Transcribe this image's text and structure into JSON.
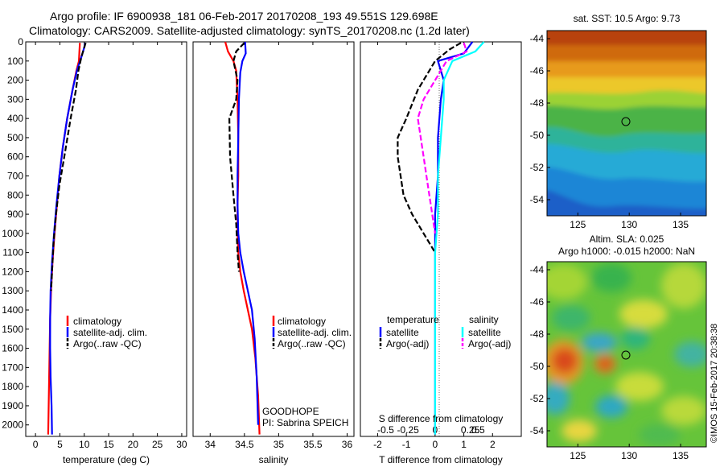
{
  "header": {
    "line1": "Argo profile: IF 6900938_181 06-Feb-2017 20170208_193 49.551S 129.698E",
    "line2": "Climatology: CARS2009. Satellite-adjusted climatology: synTS_20170208.nc (1.2d later)"
  },
  "credit": "©IMOS 15-Feb-2017 20:38:38",
  "colors": {
    "climatology": "#ff0000",
    "satellite": "#0000ff",
    "argo": "#000000",
    "satellite_s_diff": "#00ffff",
    "argo_s_diff": "#ff00ff"
  },
  "chart_data": [
    {
      "type": "line",
      "name": "temperature",
      "xlabel": "temperature (deg C)",
      "ylabel": "",
      "xlim": [
        -2,
        31
      ],
      "ylim": [
        2060,
        0
      ],
      "y_reversed": true,
      "xticks": [
        0,
        5,
        10,
        15,
        20,
        25,
        30
      ],
      "yticks": [
        0,
        100,
        200,
        300,
        400,
        500,
        600,
        700,
        800,
        900,
        1000,
        1100,
        1200,
        1300,
        1400,
        1500,
        1600,
        1700,
        1800,
        1900,
        2000
      ],
      "legend": [
        "climatology",
        "satellite-adj. clim.",
        "Argo(..raw -QC)"
      ],
      "series": [
        {
          "name": "climatology",
          "color": "#ff0000",
          "style": "solid",
          "x": [
            9.1,
            9.0,
            8.9,
            8.4,
            7.6,
            6.5,
            5.6,
            4.9,
            4.4,
            3.9,
            3.5,
            3.2,
            3.0,
            2.9,
            2.8,
            2.7,
            2.6
          ],
          "y": [
            5,
            50,
            100,
            150,
            250,
            400,
            550,
            700,
            850,
            1000,
            1150,
            1300,
            1450,
            1600,
            1750,
            1900,
            2050
          ]
        },
        {
          "name": "satellite-adj. clim.",
          "color": "#0000ff",
          "style": "solid",
          "x": [
            10.2,
            10.0,
            9.4,
            8.5,
            7.6,
            6.5,
            5.6,
            4.9,
            4.3,
            3.8,
            3.4,
            3.1,
            3.0,
            3.0,
            3.1,
            3.3,
            3.4
          ],
          "y": [
            5,
            30,
            80,
            150,
            250,
            400,
            550,
            700,
            850,
            1000,
            1150,
            1300,
            1450,
            1600,
            1750,
            1900,
            2050
          ]
        },
        {
          "name": "Argo(..raw -QC)",
          "color": "#000000",
          "style": "dashed",
          "x": [
            10.3,
            10.0,
            9.4,
            8.8,
            8.3,
            7.2,
            5.9,
            4.9,
            4.2,
            3.7,
            3.4,
            3.2
          ],
          "y": [
            5,
            30,
            80,
            150,
            250,
            400,
            600,
            750,
            900,
            1050,
            1200,
            1300
          ]
        }
      ]
    },
    {
      "type": "line",
      "name": "salinity",
      "xlabel": "salinity",
      "ylabel": "",
      "xlim": [
        33.75,
        36.1
      ],
      "ylim": [
        2060,
        0
      ],
      "y_reversed": true,
      "xticks": [
        34,
        34.5,
        35,
        35.5,
        36
      ],
      "legend": [
        "climatology",
        "satellite-adj. clim.",
        "Argo(..raw -QC)"
      ],
      "annotation": [
        "GOODHOPE",
        "PI: Sabrina SPEICH"
      ],
      "series": [
        {
          "name": "climatology",
          "color": "#ff0000",
          "style": "solid",
          "x": [
            34.22,
            34.26,
            34.34,
            34.38,
            34.4,
            34.41,
            34.41,
            34.4,
            34.4,
            34.41,
            34.44,
            34.49,
            34.55,
            34.61,
            34.66,
            34.7,
            34.72
          ],
          "y": [
            0,
            50,
            100,
            150,
            300,
            500,
            700,
            850,
            1000,
            1100,
            1200,
            1300,
            1400,
            1500,
            1650,
            1850,
            2050
          ]
        },
        {
          "name": "satellite-adj. clim.",
          "color": "#0000ff",
          "style": "solid",
          "x": [
            34.51,
            34.52,
            34.47,
            34.44,
            34.42,
            34.41,
            34.4,
            34.4,
            34.41,
            34.44,
            34.49,
            34.55,
            34.61,
            34.65,
            34.68,
            34.7
          ],
          "y": [
            0,
            60,
            100,
            160,
            300,
            500,
            700,
            850,
            1000,
            1100,
            1200,
            1300,
            1400,
            1550,
            1750,
            2000
          ]
        },
        {
          "name": "Argo(..raw -QC)",
          "color": "#000000",
          "style": "dashed",
          "x": [
            34.5,
            34.38,
            34.34,
            34.4,
            34.38,
            34.28,
            34.29,
            34.34,
            34.38,
            34.4,
            34.42
          ],
          "y": [
            5,
            50,
            100,
            200,
            300,
            400,
            600,
            800,
            950,
            1100,
            1200
          ]
        }
      ]
    },
    {
      "type": "line",
      "name": "differences",
      "xlabel": "T difference from climatology",
      "xlabel_top": "S difference from climatology",
      "xlim": [
        -2.6,
        3.0
      ],
      "ylim": [
        2060,
        0
      ],
      "y_reversed": true,
      "xticks": [
        -2,
        -1,
        0,
        1,
        2
      ],
      "top_ticks_labels": [
        "-0.5",
        "-0.25",
        "0",
        "0.25",
        "0.5"
      ],
      "legend_groups": [
        "temperature",
        "salinity"
      ],
      "legend": [
        "satellite",
        "Argo(-adj)",
        "satellite",
        "Argo(-adj)"
      ],
      "series": [
        {
          "name": "temperature satellite",
          "color": "#0000ff",
          "style": "solid",
          "x": [
            1.3,
            1.0,
            0.1,
            0.2,
            0.3,
            0.2,
            0.1,
            0.1,
            0.0,
            0.0,
            0.0,
            0.0,
            0.0,
            0.0
          ],
          "y": [
            0,
            60,
            100,
            150,
            200,
            300,
            500,
            700,
            900,
            1100,
            1300,
            1500,
            1700,
            2050
          ]
        },
        {
          "name": "temperature Argo(-adj)",
          "color": "#000000",
          "style": "dashed",
          "x": [
            0.9,
            0.5,
            0.0,
            -0.6,
            -1.0,
            -1.3,
            -1.3,
            -1.2,
            -1.1,
            -0.8,
            -0.4,
            0.0
          ],
          "y": [
            5,
            40,
            100,
            250,
            400,
            500,
            600,
            700,
            800,
            900,
            1000,
            1100
          ]
        },
        {
          "name": "salinity satellite",
          "color": "#00ffff",
          "style": "solid",
          "x": [
            1.7,
            1.4,
            0.6,
            0.3,
            0.3,
            0.2,
            0.1,
            0.1,
            0.0,
            0.0,
            0.0,
            0.0
          ],
          "y": [
            0,
            50,
            100,
            200,
            300,
            500,
            700,
            900,
            1100,
            1300,
            1600,
            2050
          ]
        },
        {
          "name": "salinity Argo(-adj)",
          "color": "#ff00ff",
          "style": "dashed",
          "x": [
            1.0,
            1.1,
            0.4,
            0.0,
            -0.4,
            -0.6,
            -0.5,
            -0.4,
            -0.3,
            -0.2,
            -0.1,
            0.0
          ],
          "y": [
            5,
            50,
            100,
            200,
            300,
            400,
            500,
            600,
            700,
            800,
            900,
            1000
          ]
        }
      ]
    },
    {
      "type": "heatmap",
      "name": "sst-map",
      "title": "sat. SST: 10.5 Argo: 9.73",
      "xlim": [
        122,
        137.5
      ],
      "ylim": [
        -55,
        -43.5
      ],
      "xticks": [
        125,
        130,
        135
      ],
      "yticks": [
        -44,
        -46,
        -48,
        -50,
        -52,
        -54
      ],
      "marker": {
        "lon": 129.698,
        "lat": -49.551
      }
    },
    {
      "type": "heatmap",
      "name": "sla-map",
      "title": "Altim. SLA: 0.025",
      "subtitle": "Argo h1000: -0.015 h2000: NaN",
      "xlim": [
        122,
        137.5
      ],
      "ylim": [
        -55,
        -43.5
      ],
      "xticks": [
        125,
        130,
        135
      ],
      "yticks": [
        -44,
        -46,
        -48,
        -50,
        -52,
        -54
      ],
      "marker": {
        "lon": 129.698,
        "lat": -49.551
      }
    }
  ]
}
